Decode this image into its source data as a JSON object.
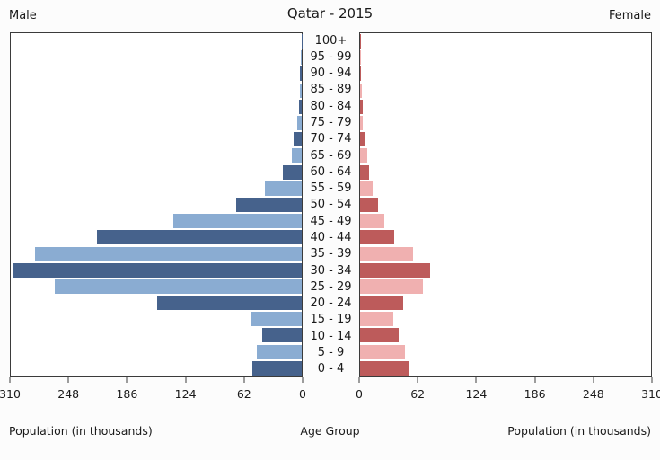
{
  "header": {
    "title": "Qatar - 2015",
    "left_label": "Male",
    "right_label": "Female"
  },
  "axis": {
    "left_xlabel": "Population (in thousands)",
    "center_xlabel": "Age Group",
    "right_xlabel": "Population (in thousands)",
    "male_ticks": [
      "310",
      "248",
      "186",
      "124",
      "62",
      "0"
    ],
    "female_ticks": [
      "0",
      "62",
      "124",
      "186",
      "248",
      "310"
    ]
  },
  "colors": {
    "male_dark": "#46628c",
    "male_light": "#8aacd2",
    "female_dark": "#bd5b5b",
    "female_light": "#f0b0b0",
    "spine": "#3b3b3b"
  },
  "chart_data": {
    "type": "bar",
    "subtype": "population-pyramid",
    "title": "Qatar - 2015",
    "xlabel": "Population (in thousands)",
    "center_label": "Age Group",
    "xlim": [
      0,
      310
    ],
    "tick_step": 62,
    "grid": false,
    "categories": [
      "100+",
      "95 - 99",
      "90 - 94",
      "85 - 89",
      "80 - 84",
      "75 - 79",
      "70 - 74",
      "65 - 69",
      "60 - 64",
      "55 - 59",
      "50 - 54",
      "45 - 49",
      "40 - 44",
      "35 - 39",
      "30 - 34",
      "25 - 29",
      "20 - 24",
      "15 - 19",
      "10 - 14",
      "5 - 9",
      "0 - 4"
    ],
    "series": [
      {
        "name": "Male",
        "side": "left",
        "values": [
          0.4,
          1.0,
          1.9,
          2.4,
          3.3,
          4.8,
          8.6,
          10.5,
          20,
          39,
          70,
          137,
          218,
          284,
          307,
          263,
          154,
          55,
          42,
          48,
          53
        ]
      },
      {
        "name": "Female",
        "side": "right",
        "values": [
          0.2,
          0.6,
          1.0,
          1.5,
          2.4,
          3.3,
          5.7,
          7.7,
          9.6,
          13.4,
          19,
          26,
          36,
          56,
          75,
          67,
          46,
          35,
          41,
          48,
          53
        ]
      }
    ]
  }
}
